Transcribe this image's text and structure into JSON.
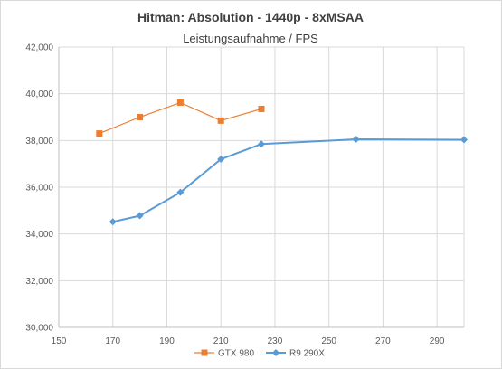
{
  "chart_data": {
    "type": "line",
    "title": "Hitman: Absolution - 1440p - 8xMSAA",
    "subtitle": "Leistungsaufnahme / FPS",
    "xlabel": "",
    "ylabel": "",
    "xlim": [
      150,
      300
    ],
    "ylim": [
      30,
      42
    ],
    "x_ticks": [
      150,
      170,
      190,
      210,
      230,
      250,
      270,
      290
    ],
    "y_ticks": [
      30,
      32,
      34,
      36,
      38,
      40,
      42
    ],
    "y_tick_labels": [
      "30,000",
      "32,000",
      "34,000",
      "36,000",
      "38,000",
      "40,000",
      "42,000"
    ],
    "grid": true,
    "legend_position": "bottom",
    "series": [
      {
        "name": "GTX 980",
        "color": "#ed7d31",
        "marker": "square",
        "x": [
          165,
          180,
          195,
          210,
          225
        ],
        "y": [
          38.3,
          39.0,
          39.62,
          38.85,
          39.35
        ]
      },
      {
        "name": "R9 290X",
        "color": "#5b9bd5",
        "marker": "diamond",
        "x": [
          170,
          180,
          195,
          210,
          225,
          260,
          300
        ],
        "y": [
          34.52,
          34.78,
          35.78,
          37.2,
          37.85,
          38.05,
          38.03
        ]
      }
    ]
  }
}
